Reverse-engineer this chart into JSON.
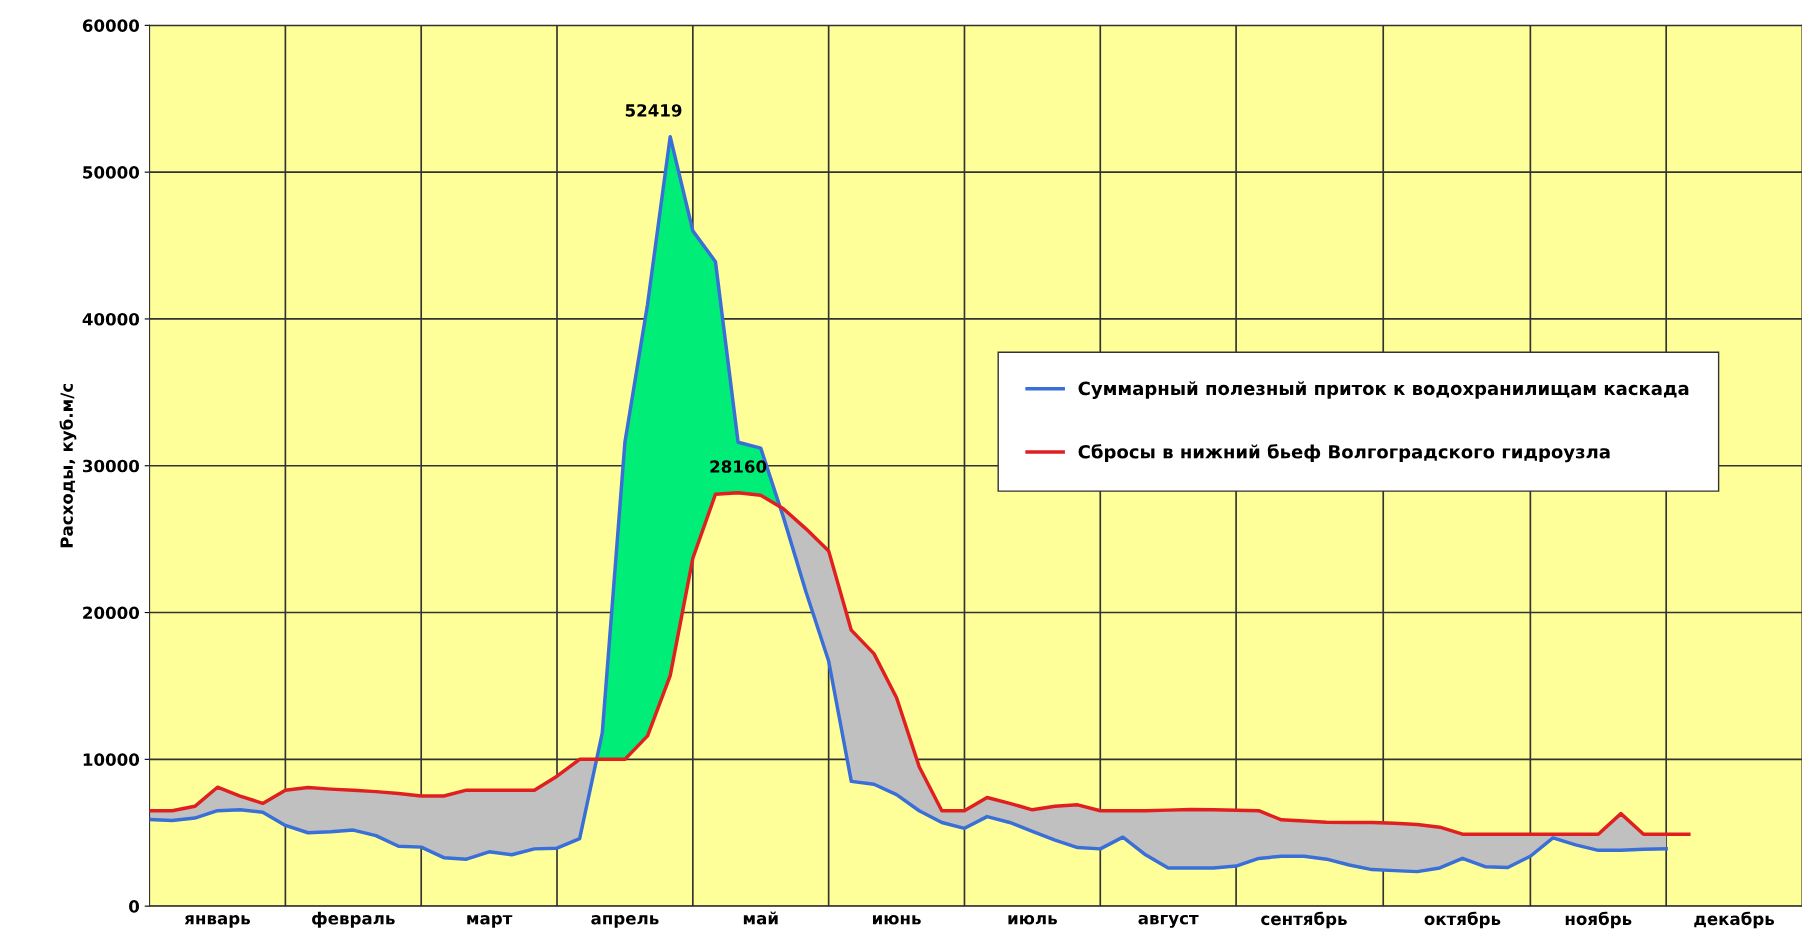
{
  "chart_data": {
    "type": "line",
    "ylabel": "Расходы, куб.м/с",
    "categories": [
      null,
      null,
      null,
      "январь",
      null,
      null,
      null,
      null,
      null,
      "февраль",
      null,
      null,
      null,
      null,
      null,
      "март",
      null,
      null,
      null,
      null,
      null,
      "апрель",
      null,
      null,
      null,
      null,
      null,
      "май",
      null,
      null,
      null,
      null,
      null,
      "июнь",
      null,
      null,
      null,
      null,
      null,
      "июль",
      null,
      null,
      null,
      null,
      null,
      "август",
      null,
      null,
      null,
      null,
      null,
      "сентябрь",
      null,
      null,
      null,
      null,
      null,
      null,
      "октябрь",
      null,
      null,
      null,
      null,
      null,
      "ноябрь",
      null,
      null,
      null,
      null,
      null,
      "декабрь",
      null,
      null
    ],
    "ylim": [
      0,
      60000
    ],
    "yticks": [
      0,
      10000,
      20000,
      30000,
      40000,
      50000,
      60000
    ],
    "grid": true,
    "legend": "right",
    "marker": "none",
    "line_style": "solid",
    "series": [
      {
        "name": "Суммарный полезный приток к водохранилищам каскада",
        "color": "#3a6fd8",
        "values": [
          5900,
          5830,
          6000,
          6500,
          6560,
          6400,
          5500,
          5000,
          5070,
          5180,
          4800,
          4080,
          4020,
          3300,
          3200,
          3700,
          3500,
          3900,
          3950,
          4600,
          11800,
          31600,
          41000,
          52419,
          46000,
          43900,
          31600,
          31200,
          26500,
          21400,
          16700,
          8500,
          8300,
          7600,
          6500,
          5700,
          5300,
          6100,
          5700,
          5100,
          4500,
          3990,
          3900,
          4700,
          3500,
          2600,
          2600,
          2600,
          2730,
          3250,
          3400,
          3400,
          3200,
          2800,
          2490,
          2420,
          2350,
          2600,
          3260,
          2690,
          2630,
          3400,
          4650,
          4170,
          3800,
          3800,
          3870,
          3900,
          null,
          null,
          null,
          null,
          null
        ],
        "value_labels": [
          null,
          null,
          null,
          null,
          null,
          null,
          null,
          null,
          null,
          null,
          null,
          null,
          null,
          null,
          null,
          null,
          null,
          null,
          null,
          null,
          null,
          null,
          null,
          "52419",
          null,
          null,
          null,
          null,
          null,
          null,
          null,
          null,
          null,
          null,
          null,
          null,
          null,
          null,
          null,
          null,
          null,
          null,
          null,
          null,
          null,
          null,
          null,
          null,
          null,
          null,
          null,
          null,
          null,
          null,
          null,
          null,
          null,
          null,
          null,
          null,
          null,
          null,
          null,
          null,
          null,
          null,
          null,
          null,
          null,
          null,
          null,
          null,
          null
        ]
      },
      {
        "name": "Сбросы в нижний бьеф Волгоградского гидроузла",
        "color": "#e02020",
        "values": [
          6500,
          6500,
          6800,
          8100,
          7500,
          7000,
          7900,
          8080,
          7970,
          7890,
          7800,
          7670,
          7500,
          7500,
          7900,
          7900,
          7900,
          7900,
          8850,
          10000,
          10000,
          10000,
          11600,
          15700,
          23700,
          28060,
          28160,
          27990,
          27070,
          25700,
          24200,
          18800,
          17200,
          14200,
          9500,
          6500,
          6500,
          7400,
          7000,
          6560,
          6800,
          6900,
          6500,
          6500,
          6500,
          6540,
          6590,
          6570,
          6530,
          6500,
          5880,
          5800,
          5720,
          5700,
          5700,
          5650,
          5560,
          5380,
          4900,
          4900,
          4900,
          4900,
          4900,
          4900,
          4900,
          6300,
          4900,
          4900,
          4900,
          null,
          null,
          null,
          null
        ],
        "value_labels": [
          null,
          null,
          null,
          null,
          null,
          null,
          null,
          null,
          null,
          null,
          null,
          null,
          null,
          null,
          null,
          null,
          null,
          null,
          null,
          null,
          null,
          null,
          null,
          null,
          null,
          null,
          "28160",
          null,
          null,
          null,
          null,
          null,
          null,
          null,
          null,
          null,
          null,
          null,
          null,
          null,
          null,
          null,
          null,
          null,
          null,
          null,
          null,
          null,
          null,
          null,
          null,
          null,
          null,
          null,
          null,
          null,
          null,
          null,
          null,
          null,
          null,
          null,
          null,
          null,
          null,
          null,
          null,
          null,
          null,
          null,
          null,
          null,
          null
        ]
      }
    ]
  }
}
